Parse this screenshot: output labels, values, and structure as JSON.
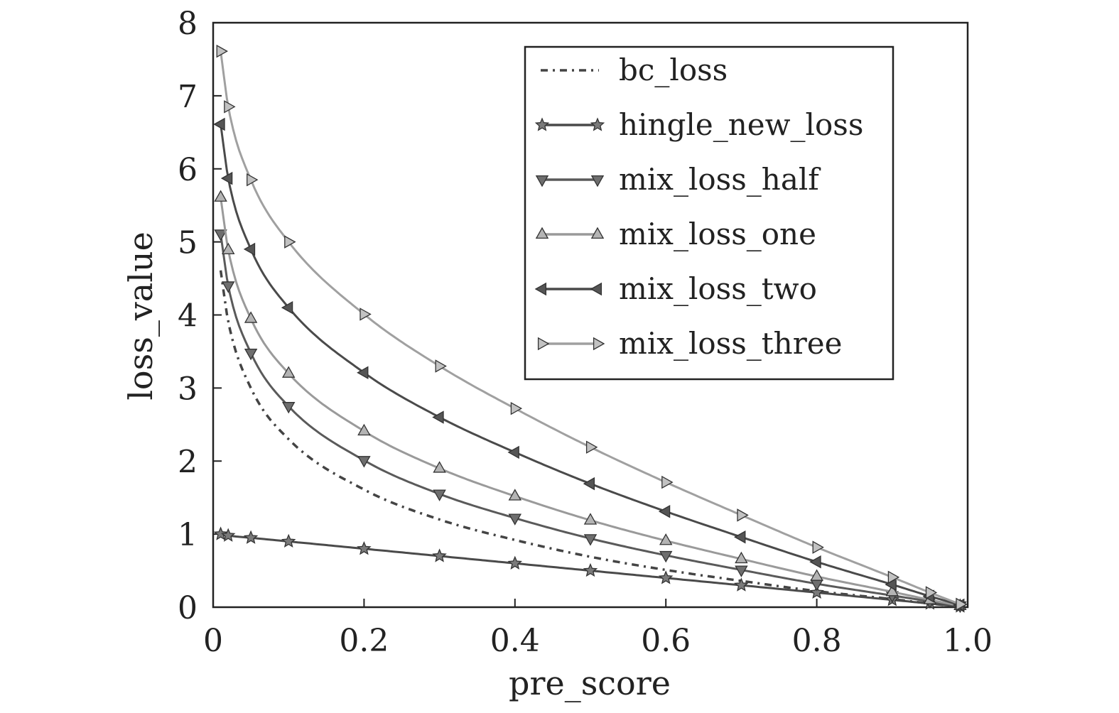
{
  "chart_data": {
    "type": "line",
    "title": "",
    "xlabel": "pre_score",
    "ylabel": "loss_value",
    "xlim": [
      0,
      1.0
    ],
    "ylim": [
      0,
      8
    ],
    "x_ticks": [
      "0",
      "0.2",
      "0.4",
      "0.6",
      "0.8",
      "1.0"
    ],
    "y_ticks": [
      "0",
      "1",
      "2",
      "3",
      "4",
      "5",
      "6",
      "7",
      "8"
    ],
    "grid": false,
    "legend_position": "top-right",
    "x": [
      0.01,
      0.02,
      0.05,
      0.1,
      0.2,
      0.3,
      0.4,
      0.5,
      0.6,
      0.7,
      0.8,
      0.9,
      0.95,
      0.99
    ],
    "series": [
      {
        "name": "bc_loss",
        "marker": "none",
        "line": "dashdot",
        "color": "#444444",
        "values": [
          4.61,
          3.91,
          3.0,
          2.3,
          1.61,
          1.2,
          0.92,
          0.69,
          0.51,
          0.36,
          0.22,
          0.11,
          0.05,
          0.01
        ]
      },
      {
        "name": "hingle_new_loss",
        "marker": "star",
        "line": "solid",
        "color": "#4a4a4a",
        "values": [
          1.0,
          0.98,
          0.95,
          0.9,
          0.8,
          0.7,
          0.6,
          0.5,
          0.4,
          0.3,
          0.2,
          0.1,
          0.05,
          0.01
        ]
      },
      {
        "name": "mix_loss_half",
        "marker": "triangle-down",
        "line": "solid",
        "color": "#5a5a5a",
        "values": [
          5.11,
          4.4,
          3.48,
          2.75,
          2.01,
          1.55,
          1.22,
          0.94,
          0.71,
          0.51,
          0.32,
          0.16,
          0.08,
          0.02
        ]
      },
      {
        "name": "mix_loss_one",
        "marker": "triangle-up",
        "line": "solid",
        "color": "#9a9a9a",
        "values": [
          5.61,
          4.89,
          3.95,
          3.2,
          2.41,
          1.9,
          1.52,
          1.19,
          0.91,
          0.66,
          0.42,
          0.21,
          0.1,
          0.02
        ]
      },
      {
        "name": "mix_loss_two",
        "marker": "triangle-left",
        "line": "solid",
        "color": "#4a4a4a",
        "values": [
          6.61,
          5.87,
          4.9,
          4.1,
          3.21,
          2.6,
          2.12,
          1.69,
          1.31,
          0.96,
          0.62,
          0.31,
          0.15,
          0.03
        ]
      },
      {
        "name": "mix_loss_three",
        "marker": "triangle-right",
        "line": "solid",
        "color": "#a0a0a0",
        "values": [
          7.61,
          6.85,
          5.85,
          5.0,
          4.01,
          3.3,
          2.72,
          2.19,
          1.71,
          1.26,
          0.82,
          0.41,
          0.2,
          0.04
        ]
      }
    ]
  }
}
